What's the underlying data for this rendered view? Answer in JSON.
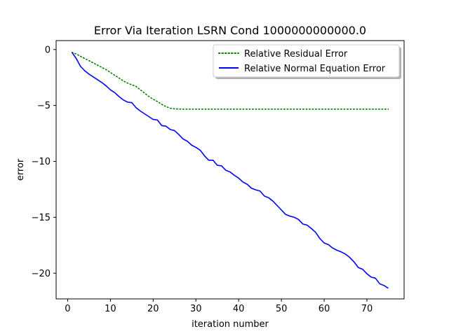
{
  "chart_data": {
    "type": "line",
    "title": "Error Via Iteration LSRN Cond 1000000000000.0",
    "xlabel": "iteration number",
    "ylabel": "error",
    "xlim": [
      -2.7,
      78.7
    ],
    "ylim": [
      -22.3,
      0.8
    ],
    "xticks": [
      0,
      10,
      20,
      30,
      40,
      50,
      60,
      70
    ],
    "yticks": [
      0,
      -5,
      -10,
      -15,
      -20
    ],
    "grid": false,
    "legend_position": "top-right",
    "series": [
      {
        "name": "Relative Residual Error",
        "color": "#008000",
        "linestyle": "dotted",
        "x": [
          1,
          2,
          3,
          4,
          5,
          6,
          7,
          8,
          9,
          10,
          11,
          12,
          13,
          14,
          15,
          16,
          17,
          18,
          19,
          20,
          21,
          22,
          23,
          24,
          25,
          26,
          27,
          28,
          29,
          30,
          35,
          40,
          45,
          50,
          55,
          60,
          65,
          70,
          75
        ],
        "y": [
          -0.25,
          -0.4,
          -0.6,
          -0.8,
          -1.0,
          -1.2,
          -1.4,
          -1.6,
          -1.8,
          -2.05,
          -2.3,
          -2.55,
          -2.8,
          -3.0,
          -3.15,
          -3.3,
          -3.6,
          -3.9,
          -4.2,
          -4.45,
          -4.65,
          -4.9,
          -5.1,
          -5.25,
          -5.3,
          -5.32,
          -5.33,
          -5.33,
          -5.33,
          -5.33,
          -5.33,
          -5.33,
          -5.33,
          -5.33,
          -5.33,
          -5.33,
          -5.33,
          -5.33,
          -5.33
        ]
      },
      {
        "name": "Relative Normal Equation Error",
        "color": "#0000ff",
        "linestyle": "solid",
        "x": [
          1,
          2,
          3,
          4,
          5,
          6,
          7,
          8,
          9,
          10,
          11,
          12,
          13,
          14,
          15,
          16,
          17,
          18,
          19,
          20,
          21,
          22,
          23,
          24,
          25,
          26,
          27,
          28,
          29,
          30,
          31,
          32,
          33,
          34,
          35,
          36,
          37,
          38,
          39,
          40,
          41,
          42,
          43,
          44,
          45,
          46,
          47,
          48,
          49,
          50,
          51,
          52,
          53,
          54,
          55,
          56,
          57,
          58,
          59,
          60,
          61,
          62,
          63,
          64,
          65,
          66,
          67,
          68,
          69,
          70,
          71,
          72,
          73,
          74,
          75
        ],
        "y": [
          -0.25,
          -0.8,
          -1.5,
          -1.9,
          -2.2,
          -2.45,
          -2.7,
          -2.95,
          -3.25,
          -3.6,
          -3.85,
          -4.2,
          -4.5,
          -4.7,
          -4.75,
          -5.2,
          -5.5,
          -5.75,
          -6.0,
          -6.25,
          -6.3,
          -6.8,
          -6.85,
          -7.15,
          -7.25,
          -7.6,
          -8.0,
          -8.2,
          -8.55,
          -8.75,
          -9.0,
          -9.5,
          -9.9,
          -9.9,
          -10.35,
          -10.4,
          -10.8,
          -10.95,
          -11.25,
          -11.5,
          -11.85,
          -12.05,
          -12.4,
          -12.55,
          -12.65,
          -13.1,
          -13.25,
          -13.55,
          -13.95,
          -14.35,
          -14.75,
          -14.9,
          -15.0,
          -15.2,
          -15.6,
          -15.7,
          -16.0,
          -16.35,
          -16.9,
          -17.3,
          -17.45,
          -17.75,
          -17.95,
          -18.1,
          -18.3,
          -18.6,
          -19.0,
          -19.5,
          -19.65,
          -20.05,
          -20.35,
          -20.45,
          -20.95,
          -21.1,
          -21.35
        ]
      }
    ]
  }
}
